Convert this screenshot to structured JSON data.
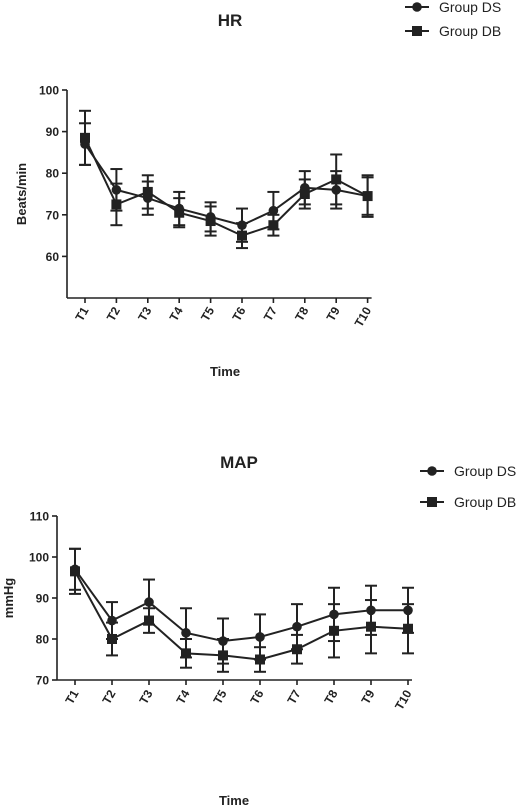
{
  "chart_data": [
    {
      "type": "line",
      "title": "HR",
      "xlabel": "Time",
      "ylabel": "Beats/min",
      "categories": [
        "T1",
        "T2",
        "T3",
        "T4",
        "T5",
        "T6",
        "T7",
        "T8",
        "T9",
        "T10"
      ],
      "yticks": [
        60,
        70,
        80,
        90,
        100
      ],
      "ylim": [
        50,
        100
      ],
      "grid": false,
      "legend_position": "top-right",
      "series": [
        {
          "name": "Group DS",
          "marker": "circle",
          "values": [
            87,
            76,
            74,
            71.5,
            69.5,
            67.5,
            71,
            76.5,
            76,
            74.5
          ],
          "error": [
            5,
            5,
            4,
            4,
            3.5,
            4,
            4.5,
            4,
            4.5,
            4.5
          ]
        },
        {
          "name": "Group DB",
          "marker": "square",
          "values": [
            88.5,
            72.5,
            75.5,
            70.5,
            68.5,
            65,
            67.5,
            75,
            78.5,
            74.5
          ],
          "error": [
            6.5,
            5,
            4,
            3.5,
            3.5,
            3,
            2.5,
            3.5,
            6,
            5
          ]
        }
      ]
    },
    {
      "type": "line",
      "title": "MAP",
      "xlabel": "Time",
      "ylabel": "mmHg",
      "categories": [
        "T1",
        "T2",
        "T3",
        "T4",
        "T5",
        "T6",
        "T7",
        "T8",
        "T9",
        "T10"
      ],
      "yticks": [
        70,
        80,
        90,
        100,
        110
      ],
      "ylim": [
        70,
        110
      ],
      "grid": false,
      "legend_position": "top-right",
      "series": [
        {
          "name": "Group DS",
          "marker": "circle",
          "values": [
            97,
            84.5,
            89,
            81.5,
            79.5,
            80.5,
            83,
            86,
            87,
            87
          ],
          "error": [
            5,
            4.5,
            5.5,
            6,
            5.5,
            5.5,
            5.5,
            6.5,
            6,
            5.5
          ]
        },
        {
          "name": "Group DB",
          "marker": "square",
          "values": [
            96.5,
            80,
            84.5,
            76.5,
            76,
            75,
            77.5,
            82,
            83,
            82.5
          ],
          "error": [
            5.5,
            4,
            3,
            3.5,
            4,
            3,
            3.5,
            6.5,
            6.5,
            6
          ]
        }
      ]
    }
  ]
}
